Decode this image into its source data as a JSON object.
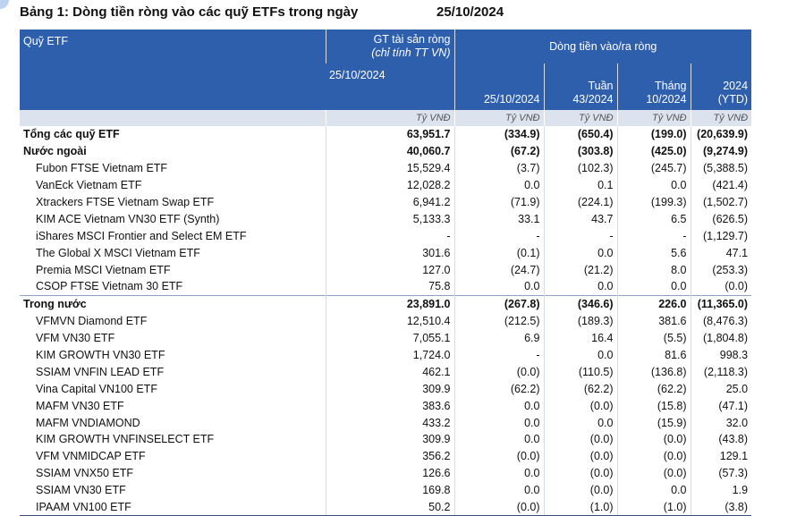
{
  "title": "Bảng 1: Dòng tiền ròng vào các quỹ ETFs trong ngày",
  "date": "25/10/2024",
  "header": {
    "fund_col": "Quỹ ETF",
    "asset_col_line1": "GT tài sản ròng",
    "asset_col_line2": "(chỉ tính TT VN)",
    "flow_group": "Dòng tiền vào/ra ròng",
    "asset_date": "25/10/2024",
    "col_day": "25/10/2024",
    "col_week_1": "Tuần",
    "col_week_2": "43/2024",
    "col_month_1": "Tháng",
    "col_month_2": "10/2024",
    "col_ytd_1": "2024",
    "col_ytd_2": "(YTD)",
    "unit": "Tỷ VNĐ"
  },
  "rows": [
    {
      "name": "Tổng các quỹ ETF",
      "asset": "63,951.7",
      "day": "(334.9)",
      "week": "(650.4)",
      "month": "(199.0)",
      "ytd": "(20,639.9)"
    },
    {
      "name": "Nước ngoài",
      "asset": "40,060.7",
      "day": "(67.2)",
      "week": "(303.8)",
      "month": "(425.0)",
      "ytd": "(9,274.9)"
    },
    {
      "name": "Fubon FTSE Vietnam ETF",
      "asset": "15,529.4",
      "day": "(3.7)",
      "week": "(102.3)",
      "month": "(245.7)",
      "ytd": "(5,388.5)"
    },
    {
      "name": "VanEck Vietnam ETF",
      "asset": "12,028.2",
      "day": "0.0",
      "week": "0.1",
      "month": "0.0",
      "ytd": "(421.4)"
    },
    {
      "name": "Xtrackers FTSE Vietnam Swap ETF",
      "asset": "6,941.2",
      "day": "(71.9)",
      "week": "(224.1)",
      "month": "(199.3)",
      "ytd": "(1,502.7)"
    },
    {
      "name": "KIM ACE Vietnam VN30 ETF (Synth)",
      "asset": "5,133.3",
      "day": "33.1",
      "week": "43.7",
      "month": "6.5",
      "ytd": "(626.5)"
    },
    {
      "name": "iShares MSCI Frontier and Select EM ETF",
      "asset": "-",
      "day": "-",
      "week": "-",
      "month": "-",
      "ytd": "(1,129.7)"
    },
    {
      "name": "The Global X MSCI Vietnam ETF",
      "asset": "301.6",
      "day": "(0.1)",
      "week": "0.0",
      "month": "5.6",
      "ytd": "47.1"
    },
    {
      "name": "Premia MSCI Vietnam ETF",
      "asset": "127.0",
      "day": "(24.7)",
      "week": "(21.2)",
      "month": "8.0",
      "ytd": "(253.3)"
    },
    {
      "name": "CSOP FTSE Vietnam 30 ETF",
      "asset": "75.8",
      "day": "0.0",
      "week": "0.0",
      "month": "0.0",
      "ytd": "(0.0)"
    },
    {
      "name": "Trong nước",
      "asset": "23,891.0",
      "day": "(267.8)",
      "week": "(346.6)",
      "month": "226.0",
      "ytd": "(11,365.0)"
    },
    {
      "name": "VFMVN Diamond ETF",
      "asset": "12,510.4",
      "day": "(212.5)",
      "week": "(189.3)",
      "month": "381.6",
      "ytd": "(8,476.3)"
    },
    {
      "name": "VFM VN30 ETF",
      "asset": "7,055.1",
      "day": "6.9",
      "week": "16.4",
      "month": "(5.5)",
      "ytd": "(1,804.8)"
    },
    {
      "name": "KIM GROWTH VN30 ETF",
      "asset": "1,724.0",
      "day": "-",
      "week": "0.0",
      "month": "81.6",
      "ytd": "998.3"
    },
    {
      "name": "SSIAM VNFIN LEAD ETF",
      "asset": "462.1",
      "day": "(0.0)",
      "week": "(110.5)",
      "month": "(136.8)",
      "ytd": "(2,118.3)"
    },
    {
      "name": "Vina Capital VN100 ETF",
      "asset": "309.9",
      "day": "(62.2)",
      "week": "(62.2)",
      "month": "(62.2)",
      "ytd": "25.0"
    },
    {
      "name": "MAFM VN30 ETF",
      "asset": "383.6",
      "day": "0.0",
      "week": "(0.0)",
      "month": "(15.8)",
      "ytd": "(47.1)"
    },
    {
      "name": "MAFM VNDIAMOND",
      "asset": "433.2",
      "day": "0.0",
      "week": "0.0",
      "month": "(15.9)",
      "ytd": "32.0"
    },
    {
      "name": "KIM GROWTH VNFINSELECT ETF",
      "asset": "309.9",
      "day": "0.0",
      "week": "(0.0)",
      "month": "(0.0)",
      "ytd": "(43.8)"
    },
    {
      "name": "VFM VNMIDCAP ETF",
      "asset": "356.2",
      "day": "(0.0)",
      "week": "(0.0)",
      "month": "(0.0)",
      "ytd": "129.1"
    },
    {
      "name": "SSIAM VNX50 ETF",
      "asset": "126.6",
      "day": "0.0",
      "week": "(0.0)",
      "month": "(0.0)",
      "ytd": "(57.3)"
    },
    {
      "name": "SSIAM VN30 ETF",
      "asset": "169.8",
      "day": "0.0",
      "week": "(0.0)",
      "month": "0.0",
      "ytd": "1.9"
    },
    {
      "name": "IPAAM VN100 ETF",
      "asset": "50.2",
      "day": "(0.0)",
      "week": "(1.0)",
      "month": "(1.0)",
      "ytd": "(3.8)"
    }
  ]
}
